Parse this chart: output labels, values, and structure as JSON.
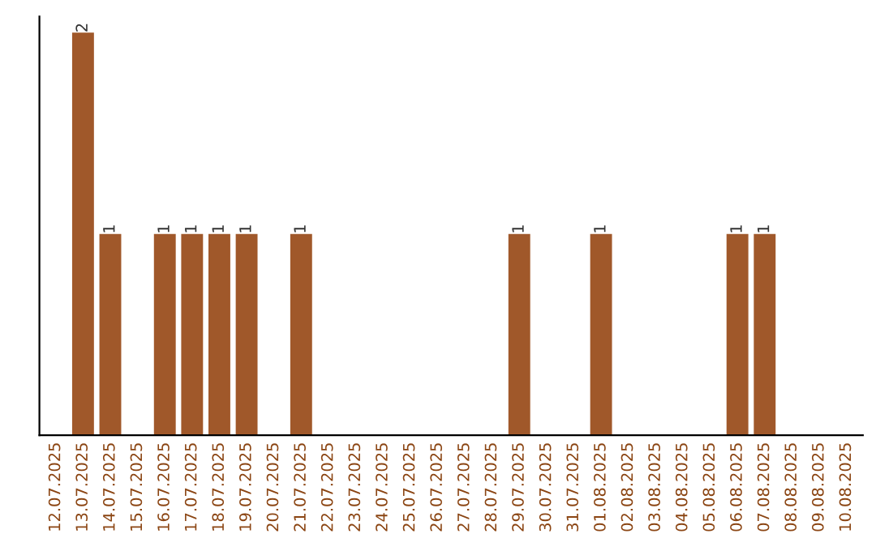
{
  "chart_data": {
    "type": "bar",
    "categories": [
      "12.07.2025",
      "13.07.2025",
      "14.07.2025",
      "15.07.2025",
      "16.07.2025",
      "17.07.2025",
      "18.07.2025",
      "19.07.2025",
      "20.07.2025",
      "21.07.2025",
      "22.07.2025",
      "23.07.2025",
      "24.07.2025",
      "25.07.2025",
      "26.07.2025",
      "27.07.2025",
      "28.07.2025",
      "29.07.2025",
      "30.07.2025",
      "31.07.2025",
      "01.08.2025",
      "02.08.2025",
      "03.08.2025",
      "04.08.2025",
      "05.08.2025",
      "06.08.2025",
      "07.08.2025",
      "08.08.2025",
      "09.08.2025",
      "10.08.2025"
    ],
    "values": [
      0,
      2,
      1,
      0,
      1,
      1,
      1,
      1,
      0,
      1,
      0,
      0,
      0,
      0,
      0,
      0,
      0,
      1,
      0,
      0,
      1,
      0,
      0,
      0,
      0,
      1,
      1,
      0,
      0,
      0
    ],
    "value_labels": [
      null,
      "2",
      "1",
      null,
      "1",
      "1",
      "1",
      "1",
      null,
      "1",
      null,
      null,
      null,
      null,
      null,
      null,
      null,
      "1",
      null,
      null,
      "1",
      null,
      null,
      null,
      null,
      "1",
      "1",
      null,
      null,
      null
    ],
    "color": "#a0582a",
    "tick_labels": "x",
    "grid": false,
    "legend": false
  }
}
